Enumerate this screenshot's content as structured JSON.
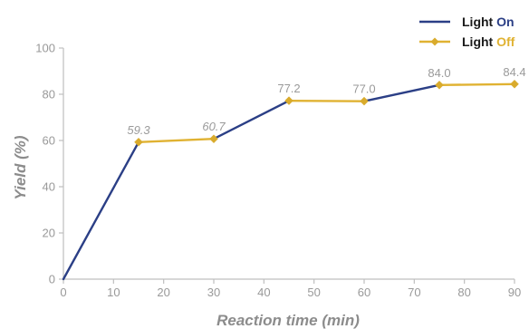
{
  "chart_data": {
    "type": "line",
    "xlabel": "Reaction time (min)",
    "ylabel": "Yield (%)",
    "xlim": [
      0,
      90
    ],
    "ylim": [
      0,
      100
    ],
    "x_ticks": [
      "0",
      "10",
      "20",
      "30",
      "40",
      "50",
      "60",
      "70",
      "80",
      "90"
    ],
    "y_ticks": [
      "0",
      "20",
      "40",
      "60",
      "80",
      "100"
    ],
    "grid": false,
    "legend_position": "top-right",
    "legend": [
      {
        "prefix": "Light ",
        "highlight": "On",
        "color": "#2b3f86",
        "marker": "none"
      },
      {
        "prefix": "Light ",
        "highlight": "Off",
        "color": "#e0b232",
        "marker": "diamond"
      }
    ],
    "points": [
      {
        "x": 0,
        "y": 0,
        "label": ""
      },
      {
        "x": 15,
        "y": 59.3,
        "label": "59.3"
      },
      {
        "x": 30,
        "y": 60.7,
        "label": "60.7"
      },
      {
        "x": 45,
        "y": 77.2,
        "label": "77.2"
      },
      {
        "x": 60,
        "y": 77.0,
        "label": "77.0"
      },
      {
        "x": 75,
        "y": 84.0,
        "label": "84.0"
      },
      {
        "x": 90,
        "y": 84.4,
        "label": "84.4"
      }
    ],
    "segments": [
      {
        "from": 0,
        "to": 15,
        "series": "Light On"
      },
      {
        "from": 15,
        "to": 30,
        "series": "Light Off"
      },
      {
        "from": 30,
        "to": 45,
        "series": "Light On"
      },
      {
        "from": 45,
        "to": 60,
        "series": "Light Off"
      },
      {
        "from": 60,
        "to": 75,
        "series": "Light On"
      },
      {
        "from": 75,
        "to": 90,
        "series": "Light Off"
      }
    ],
    "colors": {
      "on": "#2b3f86",
      "off": "#e0b232",
      "marker": "#d9ab2c",
      "axis": "#bfbfbf"
    }
  }
}
